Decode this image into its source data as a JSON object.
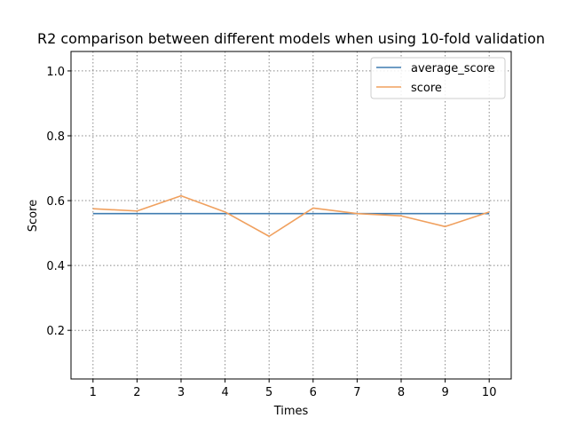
{
  "chart_data": {
    "type": "line",
    "title": "R2 comparison between different models when using 10-fold validation",
    "xlabel": "Times",
    "ylabel": "Score",
    "x": [
      1,
      2,
      3,
      4,
      5,
      6,
      7,
      8,
      9,
      10
    ],
    "xlim": [
      0.5,
      10.5
    ],
    "ylim": [
      0.05,
      1.06
    ],
    "xticks": [
      "1",
      "2",
      "3",
      "4",
      "5",
      "6",
      "7",
      "8",
      "9",
      "10"
    ],
    "yticks": [
      0.2,
      0.4,
      0.6,
      0.8,
      1.0
    ],
    "ytick_labels": [
      "0.2",
      "0.4",
      "0.6",
      "0.8",
      "1.0"
    ],
    "grid": true,
    "legend_position": "top-right",
    "series": [
      {
        "name": "average_score",
        "color": "#3f7cb1",
        "values": [
          0.56,
          0.56,
          0.56,
          0.56,
          0.56,
          0.56,
          0.56,
          0.56,
          0.56,
          0.56
        ]
      },
      {
        "name": "score",
        "color": "#f0a05e",
        "values": [
          0.575,
          0.568,
          0.615,
          0.565,
          0.49,
          0.577,
          0.56,
          0.553,
          0.52,
          0.565
        ]
      }
    ]
  }
}
